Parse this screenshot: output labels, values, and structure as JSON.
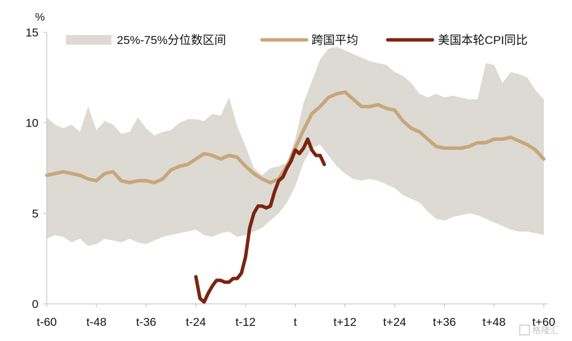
{
  "chart_data": {
    "type": "line",
    "ylabel": "%",
    "ylim": [
      0,
      15
    ],
    "yticks": [
      0,
      5,
      10,
      15
    ],
    "xlim": [
      -60,
      61
    ],
    "xticks": [
      {
        "x": -60,
        "label": "t-60"
      },
      {
        "x": -48,
        "label": "t-48"
      },
      {
        "x": -36,
        "label": "t-36"
      },
      {
        "x": -24,
        "label": "t-24"
      },
      {
        "x": -12,
        "label": "t-12"
      },
      {
        "x": 0,
        "label": "t"
      },
      {
        "x": 12,
        "label": "t+12"
      },
      {
        "x": 24,
        "label": "t+24"
      },
      {
        "x": 36,
        "label": "t+36"
      },
      {
        "x": 48,
        "label": "t+48"
      },
      {
        "x": 60,
        "label": "t+60"
      }
    ],
    "grid": false,
    "legend_position": "top",
    "band": {
      "name": "25%-75%分位数区间",
      "color": "#dcdad3",
      "x": [
        -60,
        -58,
        -56,
        -54,
        -52,
        -50,
        -48,
        -46,
        -44,
        -42,
        -40,
        -38,
        -36,
        -34,
        -32,
        -30,
        -28,
        -26,
        -24,
        -22,
        -20,
        -18,
        -16,
        -14,
        -12,
        -10,
        -8,
        -6,
        -4,
        -2,
        0,
        2,
        4,
        6,
        8,
        10,
        12,
        14,
        16,
        18,
        20,
        22,
        24,
        26,
        28,
        30,
        32,
        34,
        36,
        38,
        40,
        42,
        44,
        46,
        48,
        50,
        52,
        54,
        56,
        58,
        60
      ],
      "upper": [
        10.3,
        9.9,
        9.7,
        9.9,
        9.5,
        10.9,
        9.6,
        10.1,
        9.9,
        9.4,
        9.5,
        10.3,
        9.7,
        9.3,
        9.5,
        9.6,
        10.0,
        10.2,
        10.2,
        10.1,
        10.5,
        10.4,
        11.4,
        9.8,
        8.7,
        7.5,
        7.1,
        7.5,
        7.6,
        7.8,
        9.1,
        11.1,
        12.3,
        13.5,
        14.1,
        14.2,
        14.0,
        13.8,
        13.6,
        13.4,
        13.3,
        13.2,
        12.8,
        12.6,
        12.2,
        11.6,
        11.4,
        11.6,
        11.4,
        11.5,
        11.4,
        11.3,
        11.3,
        13.3,
        13.2,
        12.2,
        12.8,
        12.7,
        12.5,
        11.8,
        11.3
      ],
      "lower": [
        3.6,
        3.8,
        3.7,
        3.4,
        3.6,
        3.2,
        3.3,
        3.6,
        3.5,
        3.4,
        3.6,
        3.4,
        3.3,
        3.5,
        3.7,
        3.8,
        3.9,
        4.0,
        4.1,
        3.8,
        3.7,
        3.9,
        4.0,
        3.7,
        3.8,
        4.0,
        4.2,
        4.6,
        5.0,
        5.6,
        6.5,
        7.8,
        8.6,
        8.8,
        8.2,
        7.6,
        7.2,
        6.9,
        6.8,
        6.9,
        6.8,
        6.6,
        6.4,
        6.0,
        5.8,
        5.6,
        5.1,
        4.7,
        4.6,
        4.8,
        4.9,
        5.0,
        4.9,
        4.7,
        4.5,
        4.3,
        4.1,
        4.0,
        4.0,
        3.9,
        3.8
      ]
    },
    "series": [
      {
        "name": "跨国平均",
        "color": "#c8a67a",
        "x": [
          -60,
          -58,
          -56,
          -54,
          -52,
          -50,
          -48,
          -46,
          -44,
          -42,
          -40,
          -38,
          -36,
          -34,
          -32,
          -30,
          -28,
          -26,
          -24,
          -22,
          -20,
          -18,
          -16,
          -14,
          -12,
          -10,
          -8,
          -6,
          -4,
          -2,
          0,
          2,
          4,
          6,
          8,
          10,
          12,
          14,
          16,
          18,
          20,
          22,
          24,
          26,
          28,
          30,
          32,
          34,
          36,
          38,
          40,
          42,
          44,
          46,
          48,
          50,
          52,
          54,
          56,
          58,
          60
        ],
        "y": [
          7.1,
          7.2,
          7.3,
          7.2,
          7.1,
          6.9,
          6.8,
          7.2,
          7.3,
          6.8,
          6.7,
          6.8,
          6.8,
          6.7,
          6.9,
          7.4,
          7.6,
          7.7,
          8.0,
          8.3,
          8.2,
          8.0,
          8.2,
          8.1,
          7.6,
          7.2,
          6.9,
          6.7,
          6.9,
          7.6,
          8.6,
          9.6,
          10.5,
          10.9,
          11.4,
          11.6,
          11.7,
          11.3,
          10.9,
          10.9,
          11.0,
          10.8,
          10.7,
          10.1,
          9.7,
          9.5,
          9.1,
          8.7,
          8.6,
          8.6,
          8.6,
          8.7,
          8.9,
          8.9,
          9.1,
          9.1,
          9.2,
          9.0,
          8.8,
          8.5,
          8.0
        ]
      },
      {
        "name": "美国本轮CPI同比",
        "color": "#7a2410",
        "x": [
          -24,
          -23,
          -22,
          -21,
          -20,
          -19,
          -18,
          -17,
          -16,
          -15,
          -14,
          -13,
          -12,
          -11,
          -10,
          -9,
          -8,
          -7,
          -6,
          -5,
          -4,
          -3,
          -2,
          -1,
          0,
          1,
          2,
          3,
          4,
          5,
          6,
          7
        ],
        "y": [
          1.5,
          0.3,
          0.1,
          0.6,
          1.0,
          1.3,
          1.3,
          1.2,
          1.2,
          1.4,
          1.4,
          1.7,
          2.6,
          4.2,
          5.0,
          5.4,
          5.4,
          5.3,
          5.4,
          6.2,
          6.8,
          7.0,
          7.5,
          7.9,
          8.5,
          8.3,
          8.6,
          9.1,
          8.5,
          8.2,
          8.2,
          7.7
        ]
      }
    ]
  },
  "watermark": "格隆汇"
}
